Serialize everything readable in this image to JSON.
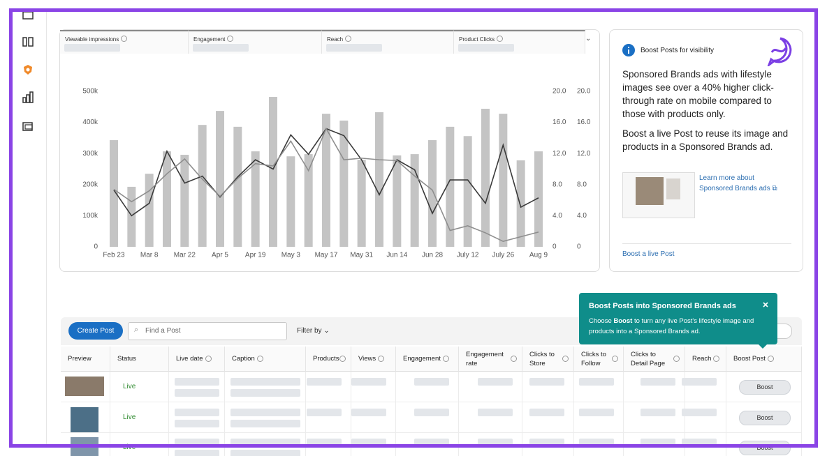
{
  "tabs": [
    "Viewable impressions",
    "Engagement",
    "Reach",
    "Product Clicks"
  ],
  "tip_card": {
    "title": "Boost Posts for visibility",
    "paragraphs": [
      "Sponsored Brands ads with lifestyle images see over a 40% higher click-through rate on mobile compared to those with products only.",
      "Boost a live Post to reuse its image and products in a Sponsored Brands ad."
    ],
    "link": "Learn more about Sponsored Brands ads",
    "action": "Boost a live Post"
  },
  "chart_data": {
    "type": "bar-line",
    "categories": [
      "Feb 23",
      null,
      "Mar 8",
      null,
      "Mar 22",
      null,
      "Apr 5",
      null,
      "Apr 19",
      null,
      "May 3",
      null,
      "May 17",
      null,
      "May 31",
      null,
      "Jun 14",
      null,
      "Jun 28",
      null,
      "July 12",
      null,
      "July 26",
      null,
      "Aug 9"
    ],
    "series": [
      {
        "color": "#c4c4c4",
        "type": "bar",
        "values": [
          343000,
          193000,
          235000,
          307000,
          296000,
          392000,
          437000,
          386000,
          307000,
          482000,
          291000,
          298000,
          428000,
          406000,
          280000,
          433000,
          294000,
          298000,
          343000,
          386000,
          356000,
          444000,
          428000,
          278000,
          307000
        ]
      },
      {
        "color": "#3a3a3a",
        "type": "line",
        "axis": "y2",
        "values": [
          7.3,
          4.0,
          5.6,
          12.3,
          8.2,
          9.1,
          6.4,
          9.0,
          11.2,
          10.0,
          14.4,
          11.9,
          15.2,
          14.3,
          11.2,
          6.7,
          11.2,
          9.9,
          4.3,
          8.6,
          8.6,
          5.6,
          13.1,
          5.1,
          6.3
        ]
      },
      {
        "color": "#8e8e8e",
        "type": "line",
        "axis": "y3",
        "values": [
          7.4,
          5.8,
          7.2,
          9.4,
          11.3,
          8.7,
          6.5,
          8.8,
          10.7,
          10.4,
          13.6,
          9.8,
          15.2,
          11.2,
          11.4,
          11.2,
          11.1,
          9.1,
          7.3,
          2.1,
          2.7,
          1.8,
          0.7,
          1.3,
          1.9
        ]
      }
    ],
    "ylim": [
      0,
      500000
    ],
    "yticks": [
      0,
      {
        "value": 100000,
        "label": "100k"
      },
      {
        "value": 200000,
        "label": "200k"
      },
      {
        "value": 300000,
        "label": "300k"
      },
      {
        "value": 400000,
        "label": "400k"
      },
      {
        "value": 500000,
        "label": "500k"
      }
    ],
    "y2lim": [
      0,
      20
    ],
    "y2ticks": [
      0,
      {
        "value": 4,
        "label": "4.0"
      },
      {
        "value": 8,
        "label": "8.0"
      },
      {
        "value": 12,
        "label": "12.0"
      },
      {
        "value": 16,
        "label": "16.0"
      },
      {
        "value": 20,
        "label": "20.0"
      }
    ],
    "y3lim": [
      0,
      20
    ],
    "y3ticks": [
      0,
      {
        "value": 4,
        "label": "4.0"
      },
      {
        "value": 8,
        "label": "8.0"
      },
      {
        "value": 12,
        "label": "12.0"
      },
      {
        "value": 16,
        "label": "16.0"
      },
      {
        "value": 20,
        "label": "20.0"
      }
    ]
  },
  "toolbar": {
    "create": "Create Post",
    "search_placeholder": "Find a Post",
    "filter": "Filter by"
  },
  "tooltip": {
    "title": "Boost Posts into Sponsored Brands ads",
    "body": [
      "Choose ",
      "Boost",
      " to turn any live Post's lifestyle image and products into a Sponsored Brands ad."
    ]
  },
  "table": {
    "columns": [
      "Preview",
      "Status",
      "Live date",
      "Caption",
      "Products",
      "Views",
      "Engagement",
      "Engagement rate",
      "Clicks to Store",
      "Clicks to Follow",
      "Clicks to Detail Page",
      "Reach",
      "Boost Post"
    ],
    "rows": [
      {
        "status": "Live",
        "action": "Boost"
      },
      {
        "status": "Live",
        "action": "Boost"
      },
      {
        "status": "Live",
        "action": "Boost"
      }
    ]
  }
}
